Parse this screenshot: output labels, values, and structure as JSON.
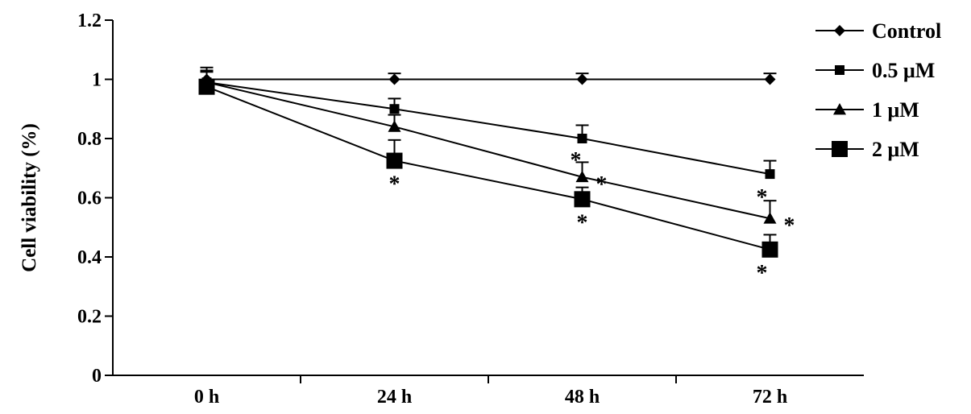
{
  "chart_data": {
    "type": "line",
    "categories": [
      "0 h",
      "24 h",
      "48 h",
      "72 h"
    ],
    "title": "",
    "xlabel": "",
    "ylabel": "Cell viability (%)",
    "ylim": [
      0,
      1.2
    ],
    "yticks": [
      "0",
      "0.2",
      "0.4",
      "0.6",
      "0.8",
      "1",
      "1.2"
    ],
    "grid": false,
    "legend_position": "top-right",
    "series": [
      {
        "name": "Control",
        "marker": "diamond",
        "values": [
          1.0,
          1.0,
          1.0,
          1.0
        ],
        "errors": [
          0.03,
          0.02,
          0.02,
          0.02
        ]
      },
      {
        "name": "0.5 μM",
        "marker": "small-square",
        "values": [
          0.99,
          0.9,
          0.8,
          0.68
        ],
        "errors": [
          0.04,
          0.035,
          0.045,
          0.045
        ]
      },
      {
        "name": "1 μM",
        "marker": "triangle",
        "values": [
          0.99,
          0.84,
          0.67,
          0.53
        ],
        "errors": [
          0.05,
          0.04,
          0.05,
          0.06
        ]
      },
      {
        "name": "2 μM",
        "marker": "large-square",
        "values": [
          0.975,
          0.725,
          0.595,
          0.425
        ],
        "errors": [
          0.05,
          0.07,
          0.04,
          0.05
        ]
      }
    ],
    "annotations": [
      {
        "text": "*",
        "category": "24 h",
        "series": "2 μM",
        "side": "below"
      },
      {
        "text": "*",
        "category": "48 h",
        "series": "1 μM",
        "side": "upper-left"
      },
      {
        "text": "*",
        "category": "48 h",
        "series": "1 μM",
        "side": "right"
      },
      {
        "text": "*",
        "category": "48 h",
        "series": "2 μM",
        "side": "below"
      },
      {
        "text": "*",
        "category": "72 h",
        "series": "0.5 μM",
        "side": "lower-left"
      },
      {
        "text": "*",
        "category": "72 h",
        "series": "1 μM",
        "side": "right"
      },
      {
        "text": "*",
        "category": "72 h",
        "series": "2 μM",
        "side": "lower-left"
      }
    ]
  },
  "colors": {
    "ink": "#000000",
    "background": "#ffffff"
  }
}
